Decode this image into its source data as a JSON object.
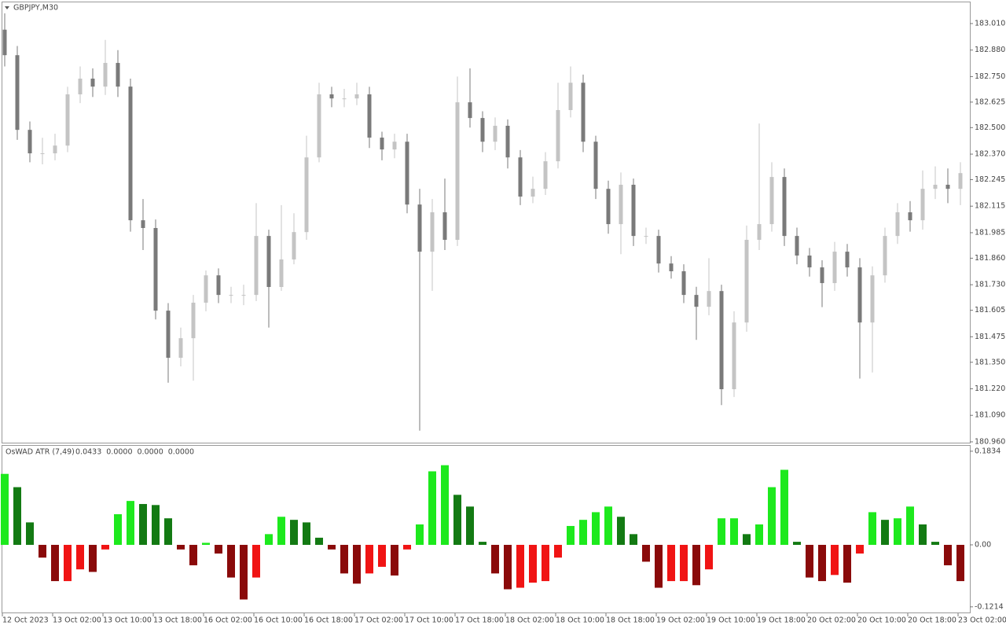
{
  "chart_data": [
    {
      "type": "candlestick",
      "title": "GBPJPY,M30",
      "ylim": [
        180.956,
        183.11
      ],
      "yticks": [
        {
          "value": 183.01,
          "label": "183.010"
        },
        {
          "value": 182.88,
          "label": "182.880"
        },
        {
          "value": 182.75,
          "label": "182.750"
        },
        {
          "value": 182.625,
          "label": "182.625"
        },
        {
          "value": 182.5,
          "label": "182.500"
        },
        {
          "value": 182.37,
          "label": "182.370"
        },
        {
          "value": 182.245,
          "label": "182.245"
        },
        {
          "value": 182.115,
          "label": "182.115"
        },
        {
          "value": 181.985,
          "label": "181.985"
        },
        {
          "value": 181.86,
          "label": "181.860"
        },
        {
          "value": 181.73,
          "label": "181.730"
        },
        {
          "value": 181.605,
          "label": "181.605"
        },
        {
          "value": 181.475,
          "label": "181.475"
        },
        {
          "value": 181.35,
          "label": "181.350"
        },
        {
          "value": 181.22,
          "label": "181.220"
        },
        {
          "value": 181.09,
          "label": "181.090"
        },
        {
          "value": 180.96,
          "label": "180.960"
        }
      ],
      "up_color": "#c4c4c4",
      "down_color": "#7a7a7a",
      "open": [
        182.98,
        182.855,
        182.489,
        182.374,
        182.374,
        182.412,
        182.663,
        182.74,
        182.701,
        182.817,
        182.701,
        182.046,
        182.008,
        181.603,
        181.372,
        181.468,
        181.642,
        181.776,
        181.68,
        181.68,
        181.68,
        181.969,
        181.719,
        181.854,
        181.988,
        182.354,
        182.663,
        182.643,
        182.643,
        182.663,
        182.451,
        182.393,
        182.431,
        182.123,
        181.892,
        182.085,
        181.95,
        182.624,
        182.547,
        182.431,
        182.509,
        182.354,
        182.162,
        182.2,
        182.335,
        182.586,
        182.72,
        182.431,
        182.2,
        182.027,
        182.22,
        181.969,
        181.969,
        181.834,
        181.796,
        181.68,
        181.622,
        181.699,
        181.218,
        181.545,
        181.95,
        182.027,
        182.258,
        181.969,
        181.873,
        181.815,
        181.738,
        181.892,
        181.815,
        181.545,
        181.776,
        181.969,
        182.085,
        182.046,
        182.2,
        182.22,
        182.2
      ],
      "high": [
        183.06,
        182.9,
        182.53,
        182.45,
        182.47,
        182.7,
        182.8,
        182.79,
        182.93,
        182.88,
        182.74,
        182.15,
        182.05,
        181.64,
        181.52,
        181.68,
        181.8,
        181.81,
        181.72,
        181.73,
        182.13,
        182.0,
        182.12,
        182.08,
        182.46,
        182.72,
        182.7,
        182.69,
        182.72,
        182.7,
        182.48,
        182.47,
        182.47,
        182.2,
        182.15,
        182.25,
        182.75,
        182.79,
        182.58,
        182.55,
        182.54,
        182.39,
        182.26,
        182.38,
        182.72,
        182.8,
        182.76,
        182.46,
        182.24,
        182.28,
        182.25,
        182.01,
        182.0,
        181.87,
        181.83,
        181.72,
        181.86,
        181.73,
        181.6,
        182.02,
        182.52,
        182.33,
        182.3,
        182.01,
        181.91,
        181.85,
        181.94,
        181.93,
        181.86,
        181.82,
        182.01,
        182.13,
        182.14,
        182.29,
        182.31,
        182.3,
        182.33
      ],
      "low": [
        182.8,
        182.44,
        182.33,
        182.32,
        182.34,
        182.38,
        182.62,
        182.65,
        182.66,
        182.65,
        181.99,
        181.9,
        181.56,
        181.25,
        181.33,
        181.26,
        181.6,
        181.64,
        181.64,
        181.63,
        181.65,
        181.52,
        181.7,
        181.83,
        181.95,
        182.33,
        182.6,
        182.6,
        182.61,
        182.4,
        182.34,
        182.35,
        182.08,
        181.015,
        181.7,
        181.9,
        181.92,
        182.5,
        182.38,
        182.39,
        182.3,
        182.12,
        182.13,
        182.17,
        182.3,
        182.55,
        182.38,
        182.15,
        181.98,
        181.88,
        181.92,
        181.93,
        181.79,
        181.76,
        181.64,
        181.46,
        181.58,
        181.14,
        181.18,
        181.5,
        181.9,
        181.99,
        181.92,
        181.83,
        181.77,
        181.62,
        181.7,
        181.77,
        181.27,
        181.3,
        181.74,
        181.93,
        181.99,
        182.0,
        182.15,
        182.13,
        182.12
      ],
      "close": [
        182.855,
        182.489,
        182.374,
        182.374,
        182.412,
        182.663,
        182.74,
        182.701,
        182.817,
        182.701,
        182.046,
        182.008,
        181.603,
        181.372,
        181.468,
        181.642,
        181.776,
        181.68,
        181.68,
        181.68,
        181.969,
        181.719,
        181.854,
        181.988,
        182.354,
        182.663,
        182.643,
        182.643,
        182.663,
        182.451,
        182.393,
        182.431,
        182.123,
        181.892,
        182.085,
        181.95,
        182.624,
        182.547,
        182.431,
        182.509,
        182.354,
        182.162,
        182.2,
        182.335,
        182.586,
        182.72,
        182.431,
        182.2,
        182.027,
        182.22,
        181.969,
        181.969,
        181.834,
        181.796,
        181.68,
        181.622,
        181.699,
        181.218,
        181.545,
        181.95,
        182.027,
        182.258,
        181.969,
        181.873,
        181.815,
        181.738,
        181.892,
        181.815,
        181.545,
        181.776,
        181.969,
        182.085,
        182.046,
        182.2,
        182.22,
        182.2,
        182.277
      ]
    },
    {
      "type": "histogram-oscillator",
      "title": "OsWAD ATR (7,49)",
      "readings": [
        "0.0433",
        "0.0000",
        "0.0000",
        "0.0000"
      ],
      "ylim": [
        -0.134,
        0.194
      ],
      "yticks": [
        0.1834,
        {
          "value": 0,
          "label": "0.00"
        },
        -0.1214
      ],
      "palette": {
        "pos_up": "#1de91d",
        "pos_down": "#137a13",
        "neg_down": "#8a0a0a",
        "neg_up": "#f01414"
      },
      "values": [
        0.139,
        0.113,
        0.044,
        -0.025,
        -0.071,
        -0.071,
        -0.048,
        -0.053,
        -0.009,
        0.06,
        0.086,
        0.08,
        0.078,
        0.052,
        -0.009,
        -0.04,
        0.004,
        -0.017,
        -0.064,
        -0.107,
        -0.064,
        0.021,
        0.055,
        0.049,
        0.044,
        0.014,
        -0.009,
        -0.056,
        -0.076,
        -0.056,
        -0.043,
        -0.06,
        -0.009,
        0.04,
        0.144,
        0.156,
        0.098,
        0.075,
        0.006,
        -0.056,
        -0.087,
        -0.084,
        -0.074,
        -0.071,
        -0.025,
        0.037,
        0.049,
        0.064,
        0.075,
        0.055,
        0.021,
        -0.033,
        -0.084,
        -0.071,
        -0.071,
        -0.079,
        -0.048,
        0.052,
        0.052,
        0.021,
        0.04,
        0.113,
        0.147,
        0.006,
        -0.064,
        -0.071,
        -0.059,
        -0.074,
        -0.017,
        0.064,
        0.049,
        0.052,
        0.075,
        0.04,
        0.006,
        -0.04,
        -0.071
      ],
      "time_labels": [
        "12 Oct 2023",
        "13 Oct 02:00",
        "13 Oct 10:00",
        "13 Oct 18:00",
        "16 Oct 02:00",
        "16 Oct 10:00",
        "16 Oct 18:00",
        "17 Oct 02:00",
        "17 Oct 10:00",
        "17 Oct 18:00",
        "18 Oct 02:00",
        "18 Oct 10:00",
        "18 Oct 18:00",
        "19 Oct 02:00",
        "19 Oct 10:00",
        "19 Oct 18:00",
        "20 Oct 02:00",
        "20 Oct 10:00",
        "20 Oct 18:00",
        "23 Oct 02:00"
      ]
    }
  ]
}
